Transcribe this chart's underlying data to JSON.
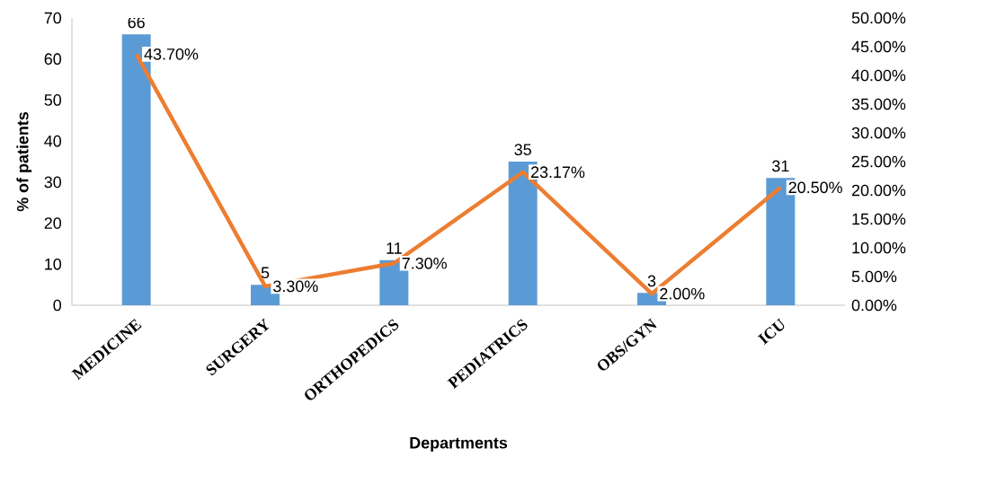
{
  "chart_data": {
    "type": "bar",
    "xlabel": "Departments",
    "ylabel": "% of patients",
    "categories": [
      "MEDICINE",
      "SURGERY",
      "ORTHOPEDICS",
      "PEDIATRICS",
      "OBS/GYN",
      "ICU"
    ],
    "series": [
      {
        "color": "#5b9bd5",
        "values": [
          66,
          5,
          11,
          35,
          3,
          31
        ],
        "value_labels": [
          "66",
          "5",
          "11",
          "35",
          "3",
          "31"
        ]
      },
      {
        "type": "line",
        "axis": "y2",
        "color": "#ed7d31",
        "values": [
          43.7,
          3.3,
          7.3,
          23.17,
          2.0,
          20.5
        ],
        "value_labels": [
          "43.70%",
          "3.30%",
          "7.30%",
          "23.17%",
          "2.00%",
          "20.50%"
        ]
      }
    ],
    "ylim": [
      0,
      70
    ],
    "yticks": [
      0,
      10,
      20,
      30,
      40,
      50,
      60,
      70
    ],
    "y2lim": [
      0,
      50
    ],
    "y2ticks": [
      {
        "value": 0,
        "label": "0.00%"
      },
      {
        "value": 5,
        "label": "5.00%"
      },
      {
        "value": 10,
        "label": "10.00%"
      },
      {
        "value": 15,
        "label": "15.00%"
      },
      {
        "value": 20,
        "label": "20.00%"
      },
      {
        "value": 25,
        "label": "25.00%"
      },
      {
        "value": 30,
        "label": "30.00%"
      },
      {
        "value": 35,
        "label": "35.00%"
      },
      {
        "value": 40,
        "label": "40.00%"
      },
      {
        "value": 45,
        "label": "45.00%"
      },
      {
        "value": 50,
        "label": "50.00%"
      }
    ],
    "grid": false
  }
}
